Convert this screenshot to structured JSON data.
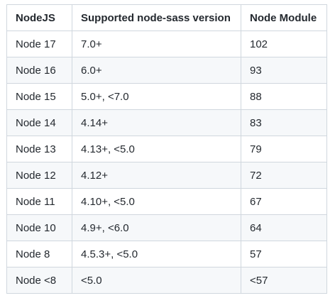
{
  "table": {
    "headers": [
      "NodeJS",
      "Supported node-sass version",
      "Node Module"
    ],
    "rows": [
      [
        "Node 17",
        "7.0+",
        "102"
      ],
      [
        "Node 16",
        "6.0+",
        "93"
      ],
      [
        "Node 15",
        "5.0+, <7.0",
        "88"
      ],
      [
        "Node 14",
        "4.14+",
        "83"
      ],
      [
        "Node 13",
        "4.13+, <5.0",
        "79"
      ],
      [
        "Node 12",
        "4.12+",
        "72"
      ],
      [
        "Node 11",
        "4.10+, <5.0",
        "67"
      ],
      [
        "Node 10",
        "4.9+, <6.0",
        "64"
      ],
      [
        "Node 8",
        "4.5.3+, <5.0",
        "57"
      ],
      [
        "Node <8",
        "<5.0",
        "<57"
      ]
    ]
  },
  "colors": {
    "border": "#d0d7de",
    "stripe": "#f6f8fa",
    "text": "#24292f"
  }
}
